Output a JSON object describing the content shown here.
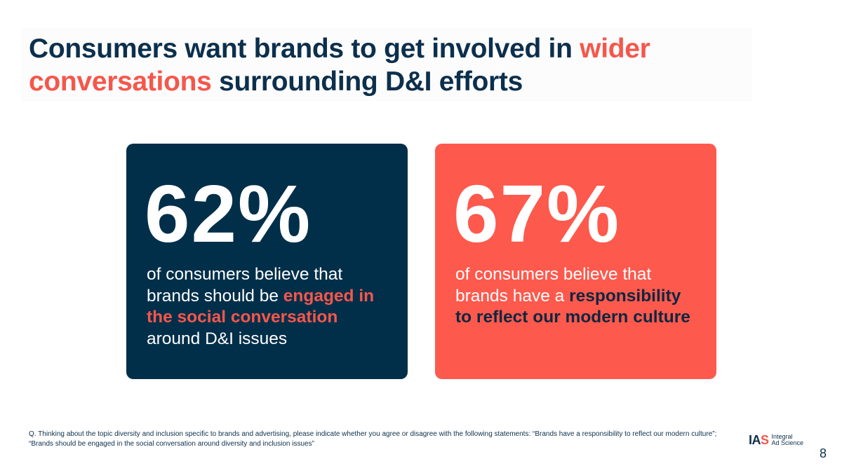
{
  "title": {
    "part1": "Consumers want brands to get involved in ",
    "highlight": "wider conversations",
    "part2": " surrounding D&I efforts"
  },
  "cards": [
    {
      "stat": "62%",
      "text1": "of consumers believe that brands should be ",
      "emphasis": "engaged in the social conversation",
      "text2": " around D&I issues",
      "background": "#012f4a",
      "emphasis_color": "#f5574b"
    },
    {
      "stat": "67%",
      "text1": "of consumers believe that brands have a ",
      "emphasis": "responsibility to reflect our modern culture",
      "text2": "",
      "background": "#fe594d",
      "emphasis_color": "#0d2740"
    }
  ],
  "footnote": "Q. Thinking about the topic diversity and inclusion specific to brands and advertising, please indicate whether you agree or disagree with the following statements: “Brands have a responsibility to reflect our modern culture”; “Brands should be engaged in the social conversation around diversity and inclusion issues”",
  "logo": {
    "mark_letters": "IA",
    "mark_s": "S",
    "line1": "Integral",
    "line2": "Ad Science"
  },
  "page_number": "8",
  "colors": {
    "navy": "#0c2f4c",
    "coral": "#f5574b"
  }
}
